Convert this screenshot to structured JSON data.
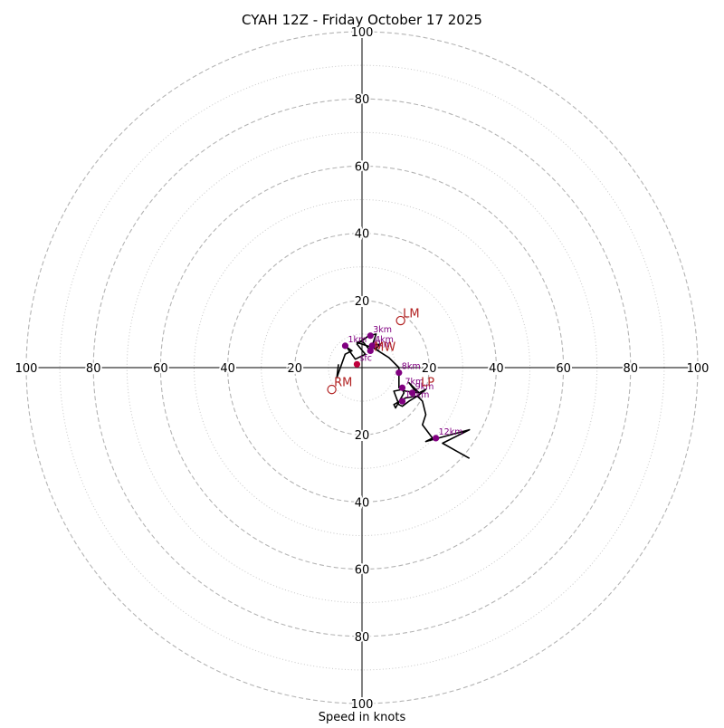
{
  "chart_data": {
    "type": "hodograph",
    "title": "CYAH 12Z - Friday October 17 2025",
    "xlabel": "Speed in knots",
    "range": 100,
    "major_rings": [
      20,
      40,
      60,
      80,
      100
    ],
    "minor_rings": [
      10,
      30,
      50,
      70,
      90
    ],
    "tick_labels": {
      "top": [
        "20",
        "40",
        "60",
        "80",
        "100"
      ],
      "bottom": [
        "20",
        "40",
        "60",
        "80",
        "100"
      ],
      "left": [
        "20",
        "40",
        "60",
        "80",
        "100"
      ],
      "right": [
        "20",
        "40",
        "60",
        "80",
        "100"
      ]
    },
    "tick_values": [
      20,
      40,
      60,
      80,
      100
    ],
    "trace": [
      [
        -7,
        1
      ],
      [
        -7.5,
        -3
      ],
      [
        -5,
        4
      ],
      [
        -3,
        5
      ],
      [
        -4.5,
        6
      ],
      [
        -2,
        2.5
      ],
      [
        1,
        4
      ],
      [
        -1.5,
        7
      ],
      [
        0,
        8
      ],
      [
        2.5,
        5
      ],
      [
        4.2,
        10
      ],
      [
        2,
        9.5
      ],
      [
        0,
        8
      ],
      [
        -1.5,
        7.5
      ],
      [
        3,
        6
      ],
      [
        5,
        5
      ],
      [
        2.5,
        6.5
      ],
      [
        5.5,
        7
      ],
      [
        4,
        5.5
      ],
      [
        8,
        3
      ],
      [
        11,
        0
      ],
      [
        11,
        -3
      ],
      [
        11,
        -6
      ],
      [
        13,
        -7
      ],
      [
        17,
        -7.5
      ],
      [
        14,
        -4.5
      ],
      [
        15.5,
        -6.5
      ],
      [
        17,
        -7.5
      ],
      [
        19,
        -6.5
      ],
      [
        16.5,
        -8.5
      ],
      [
        14,
        -10
      ],
      [
        12,
        -11.5
      ],
      [
        11,
        -11
      ],
      [
        9.5,
        -7
      ],
      [
        12,
        -6.5
      ],
      [
        12.5,
        -7.5
      ],
      [
        10,
        -12
      ],
      [
        9.5,
        -11
      ],
      [
        13,
        -9
      ],
      [
        16.5,
        -8.5
      ],
      [
        18,
        -10
      ],
      [
        19,
        -14
      ],
      [
        18,
        -17
      ],
      [
        21,
        -21
      ],
      [
        19,
        -22
      ],
      [
        32,
        -18.5
      ],
      [
        24,
        -22.5
      ],
      [
        32,
        -27
      ]
    ],
    "height_markers": [
      {
        "label": "sfc",
        "u": -1.5,
        "v": 1
      },
      {
        "label": "1km",
        "u": -5,
        "v": 6.5
      },
      {
        "label": "3km",
        "u": 2.5,
        "v": 9.5
      },
      {
        "label": "4km",
        "u": 3,
        "v": 6.5
      },
      {
        "label": "5km",
        "u": 2.5,
        "v": 5
      },
      {
        "label": "7km",
        "u": 12,
        "v": -6
      },
      {
        "label": "8km",
        "u": 11,
        "v": -1.5
      },
      {
        "label": "9km",
        "u": 15,
        "v": -7.5
      },
      {
        "label": "10km",
        "u": 12,
        "v": -10
      },
      {
        "label": "12km",
        "u": 22,
        "v": -21
      }
    ],
    "motion_markers": [
      {
        "label": "LM",
        "u": 11.5,
        "v": 14
      },
      {
        "label": "RM",
        "u": -9,
        "v": -6.5
      }
    ],
    "extra_labels": [
      {
        "text": "MW",
        "u": 3,
        "v": 6
      },
      {
        "text": "LP",
        "u": 17,
        "v": -4.5
      }
    ]
  }
}
